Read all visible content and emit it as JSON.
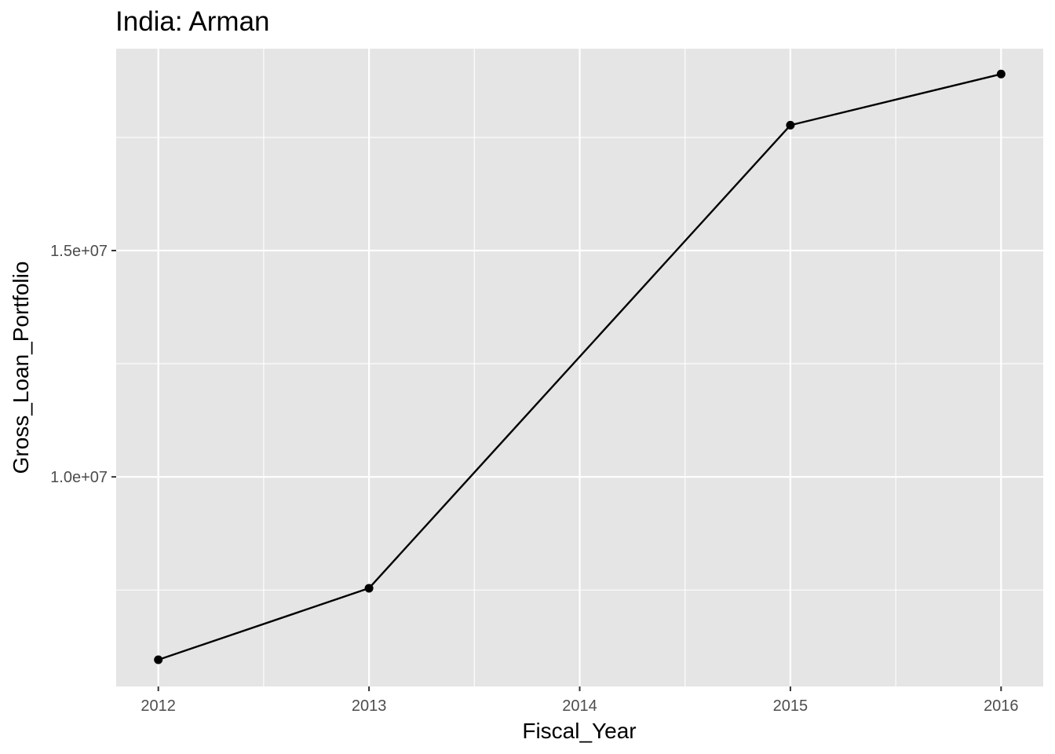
{
  "chart_data": {
    "type": "line",
    "title": "India:  Arman",
    "xlabel": "Fiscal_Year",
    "ylabel": "Gross_Loan_Portfolio",
    "x": [
      2012,
      2013,
      2014,
      2015,
      2016
    ],
    "x_tick_labels": [
      "2012",
      "2013",
      "2014",
      "2015",
      "2016"
    ],
    "y_ticks": [
      10000000,
      15000000
    ],
    "y_tick_labels": [
      "1.0e+07",
      "1.5e+07"
    ],
    "xlim": [
      2011.8,
      2016.2
    ],
    "ylim": [
      5370000,
      19460000
    ],
    "series": [
      {
        "x": [
          2012,
          2013,
          2015,
          2016
        ],
        "values": [
          5960000,
          7540000,
          17770000,
          18900000
        ]
      }
    ],
    "grid": true,
    "legend": "none",
    "colors": {
      "panel_background": "#e5e5e5",
      "grid_major": "#ffffff",
      "line": "#000000",
      "point": "#000000",
      "tick_text": "#4d4d4d",
      "tick_mark": "#333333"
    }
  }
}
